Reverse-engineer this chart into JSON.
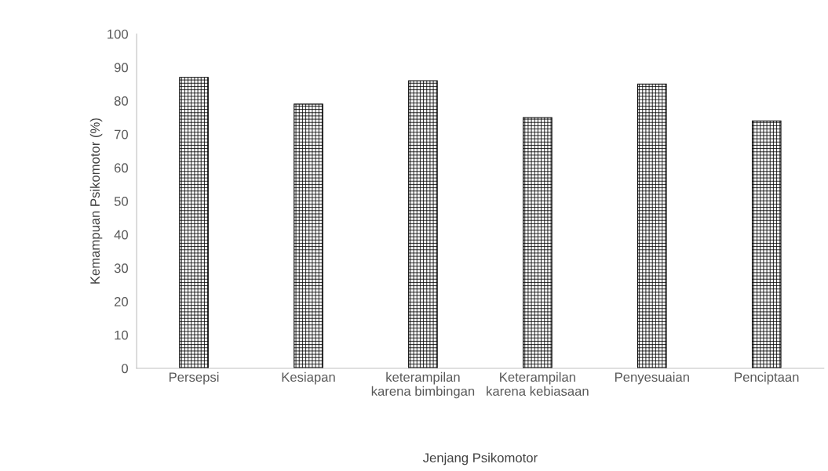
{
  "chart_data": {
    "type": "bar",
    "xlabel": "Jenjang Psikomotor",
    "ylabel": "Kemampuan Psikomotor (%)",
    "categories": [
      "Persepsi",
      "Kesiapan",
      "keterampilan\nkarena bimbingan",
      "Keterampilan\nkarena kebiasaan",
      "Penyesuaian",
      "Penciptaan"
    ],
    "values": [
      87,
      79,
      86,
      75,
      85,
      74
    ],
    "color": "#000000",
    "ylim": [
      0,
      100
    ],
    "yticks": [
      0,
      10,
      20,
      30,
      40,
      50,
      60,
      70,
      80,
      90,
      100
    ],
    "grid": false,
    "legend": false
  }
}
